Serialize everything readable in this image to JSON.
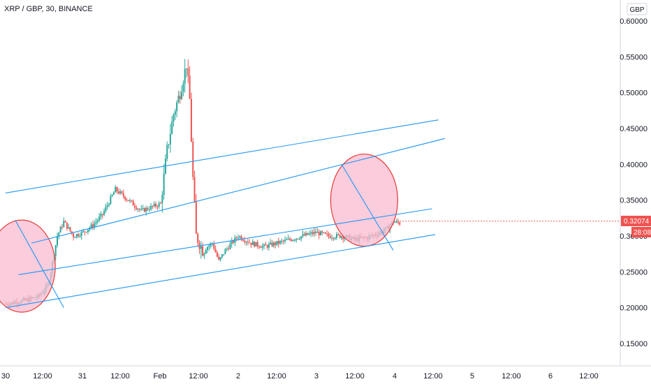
{
  "header": {
    "symbol_title": "XRP / GBP, 30, BINANCE"
  },
  "price_axis": {
    "currency": "GBP",
    "tick_labels": [
      "0.60000",
      "0.55000",
      "0.50000",
      "0.45000",
      "0.40000",
      "0.35000",
      "0.30000",
      "0.25000",
      "0.20000",
      "0.15000"
    ]
  },
  "time_axis": {
    "tick_labels": [
      "30",
      "12:00",
      "31",
      "12:00",
      "Feb",
      "12:00",
      "2",
      "12:00",
      "3",
      "12:00",
      "4",
      "12:00",
      "5",
      "12:00",
      "6",
      "12:00"
    ]
  },
  "current_price": {
    "label": "0.32074",
    "countdown": "28:08"
  },
  "colors": {
    "up": "#26a69a",
    "down": "#ef5350",
    "channel": "#2196f3",
    "circle_fill": "#f8bbd0",
    "circle_stroke": "#e53935",
    "badge": "#ef5350"
  },
  "chart_data": {
    "type": "candlestick",
    "title": "XRP / GBP, 30, BINANCE",
    "x_unit": "hours since left edge (30 Jan 00:00)",
    "ylim": [
      0.1,
      0.625
    ],
    "grid": false,
    "price_path": [
      [
        0,
        0.205
      ],
      [
        6,
        0.21
      ],
      [
        10,
        0.215
      ],
      [
        13,
        0.23
      ],
      [
        14,
        0.25
      ],
      [
        16,
        0.3
      ],
      [
        18,
        0.32
      ],
      [
        21,
        0.3
      ],
      [
        24,
        0.305
      ],
      [
        27,
        0.315
      ],
      [
        30,
        0.33
      ],
      [
        34,
        0.365
      ],
      [
        38,
        0.35
      ],
      [
        42,
        0.335
      ],
      [
        45,
        0.34
      ],
      [
        48,
        0.345
      ],
      [
        50,
        0.42
      ],
      [
        52,
        0.47
      ],
      [
        54,
        0.5
      ],
      [
        56,
        0.54
      ],
      [
        57,
        0.49
      ],
      [
        58,
        0.38
      ],
      [
        59,
        0.3
      ],
      [
        61,
        0.28
      ],
      [
        64,
        0.29
      ],
      [
        66,
        0.265
      ],
      [
        68,
        0.28
      ],
      [
        72,
        0.3
      ],
      [
        76,
        0.29
      ],
      [
        80,
        0.285
      ],
      [
        84,
        0.29
      ],
      [
        88,
        0.295
      ],
      [
        92,
        0.3
      ],
      [
        96,
        0.305
      ],
      [
        100,
        0.3
      ],
      [
        104,
        0.3
      ],
      [
        108,
        0.295
      ],
      [
        112,
        0.298
      ],
      [
        116,
        0.305
      ],
      [
        118,
        0.31
      ],
      [
        120,
        0.32
      ],
      [
        122,
        0.318
      ]
    ],
    "channel_lines": [
      {
        "x": [
          0,
          134
        ],
        "y": [
          0.36,
          0.462
        ]
      },
      {
        "x": [
          8,
          136
        ],
        "y": [
          0.29,
          0.436
        ]
      },
      {
        "x": [
          4,
          132
        ],
        "y": [
          0.246,
          0.338
        ]
      },
      {
        "x": [
          0,
          133
        ],
        "y": [
          0.2,
          0.302
        ]
      },
      {
        "x": [
          3,
          18
        ],
        "y": [
          0.322,
          0.2
        ]
      },
      {
        "x": [
          104,
          120
        ],
        "y": [
          0.4,
          0.28
        ]
      }
    ],
    "highlight_circles": [
      {
        "x": 5,
        "y": 0.258
      },
      {
        "x": 111,
        "y": 0.35
      }
    ]
  }
}
